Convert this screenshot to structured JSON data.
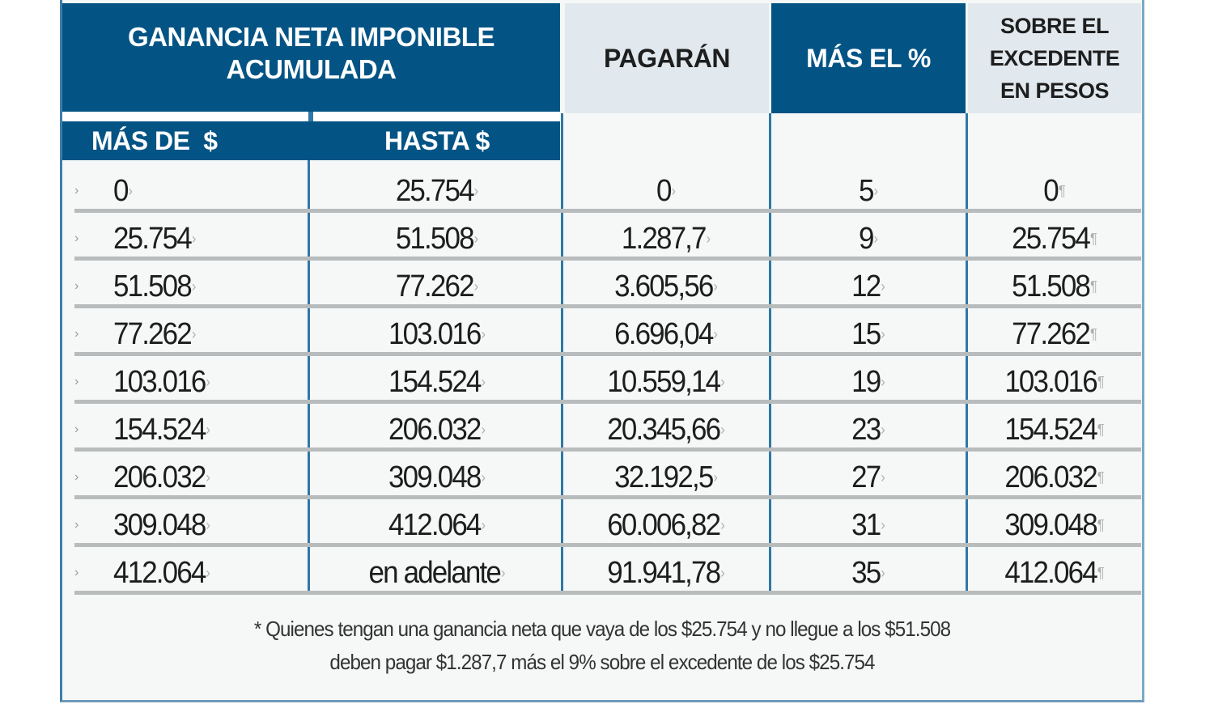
{
  "table": {
    "headers": {
      "group": "GANANCIA NETA IMPONIBLE ACUMULADA",
      "group_line1": "GANANCIA NETA IMPONIBLE",
      "group_line2": "ACUMULADA",
      "mas_de": "MÁS DE  $",
      "hasta": "HASTA $",
      "pagaran": "PAGARÁN",
      "mas_el_pct": "MÁS EL %",
      "sobre_line1": "SOBRE EL",
      "sobre_line2": "EXCEDENTE",
      "sobre_line3": "EN PESOS"
    },
    "rows": [
      {
        "mas_de": "0",
        "hasta": "25.754",
        "pagaran": "0",
        "pct": "5",
        "excedente": "0"
      },
      {
        "mas_de": "25.754",
        "hasta": "51.508",
        "pagaran": "1.287,7",
        "pct": "9",
        "excedente": "25.754"
      },
      {
        "mas_de": "51.508",
        "hasta": "77.262",
        "pagaran": "3.605,56",
        "pct": "12",
        "excedente": "51.508"
      },
      {
        "mas_de": "77.262",
        "hasta": "103.016",
        "pagaran": "6.696,04",
        "pct": "15",
        "excedente": "77.262"
      },
      {
        "mas_de": "103.016",
        "hasta": "154.524",
        "pagaran": "10.559,14",
        "pct": "19",
        "excedente": "103.016"
      },
      {
        "mas_de": "154.524",
        "hasta": "206.032",
        "pagaran": "20.345,66",
        "pct": "23",
        "excedente": "154.524"
      },
      {
        "mas_de": "206.032",
        "hasta": "309.048",
        "pagaran": "32.192,5",
        "pct": "27",
        "excedente": "206.032"
      },
      {
        "mas_de": "309.048",
        "hasta": "412.064",
        "pagaran": "60.006,82",
        "pct": "31",
        "excedente": "309.048"
      },
      {
        "mas_de": "412.064",
        "hasta": "en adelante",
        "pagaran": "91.941,78",
        "pct": "35",
        "excedente": "412.064"
      }
    ]
  },
  "footnote": {
    "line1": "* Quienes tengan una ganancia neta que vaya de los $25.754 y no llegue a los $51.508",
    "line2": "deben pagar $1.287,7 más el 9% sobre el excedente de los $25.754"
  },
  "colors": {
    "header_dark": "#035485",
    "header_light": "#e1e9ee",
    "column_rule": "#2f77a8",
    "row_rule": "#b9bcbc"
  }
}
